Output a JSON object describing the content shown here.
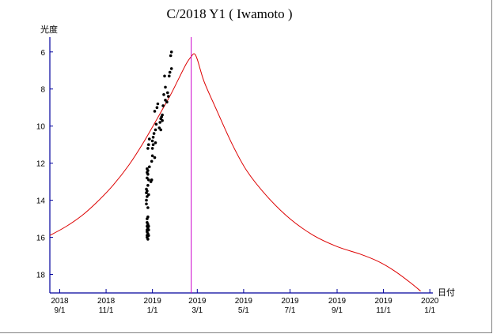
{
  "chart_data": {
    "type": "line",
    "title": "C/2018 Y1 ( Iwamoto )",
    "ylabel": "光度",
    "xlabel": "日付",
    "ylim": [
      19,
      5.2
    ],
    "y_ticks": [
      6,
      8,
      10,
      12,
      14,
      16,
      18
    ],
    "x_range": [
      "2018-08-19",
      "2020-01-05"
    ],
    "x_ticks": [
      {
        "date": "2018-09-01",
        "label": [
          "2018",
          "9/1"
        ]
      },
      {
        "date": "2018-11-01",
        "label": [
          "2018",
          "11/1"
        ]
      },
      {
        "date": "2019-01-01",
        "label": [
          "2019",
          "1/1"
        ]
      },
      {
        "date": "2019-03-01",
        "label": [
          "2019",
          "3/1"
        ]
      },
      {
        "date": "2019-05-01",
        "label": [
          "2019",
          "5/1"
        ]
      },
      {
        "date": "2019-07-01",
        "label": [
          "2019",
          "7/1"
        ]
      },
      {
        "date": "2019-09-01",
        "label": [
          "2019",
          "9/1"
        ]
      },
      {
        "date": "2019-11-01",
        "label": [
          "2019",
          "11/1"
        ]
      },
      {
        "date": "2020-01-01",
        "label": [
          "2020",
          "1/1"
        ]
      }
    ],
    "grid": false,
    "today_marker": {
      "date": "2019-02-21",
      "color": "#cc00cc"
    },
    "predicted_curve": {
      "color": "#dd0000",
      "points": [
        [
          "2018-08-19",
          15.9
        ],
        [
          "2018-09-10",
          15.4
        ],
        [
          "2018-10-01",
          14.8
        ],
        [
          "2018-10-20",
          14.1
        ],
        [
          "2018-11-10",
          13.2
        ],
        [
          "2018-12-01",
          12.1
        ],
        [
          "2018-12-20",
          10.9
        ],
        [
          "2019-01-10",
          9.4
        ],
        [
          "2019-01-25",
          8.3
        ],
        [
          "2019-02-05",
          7.4
        ],
        [
          "2019-02-15",
          6.6
        ],
        [
          "2019-02-21",
          6.25
        ],
        [
          "2019-02-25",
          6.1
        ],
        [
          "2019-03-01",
          6.4
        ],
        [
          "2019-03-10",
          7.6
        ],
        [
          "2019-03-25",
          9.0
        ],
        [
          "2019-04-15",
          10.9
        ],
        [
          "2019-05-05",
          12.4
        ],
        [
          "2019-06-01",
          13.8
        ],
        [
          "2019-07-01",
          15.0
        ],
        [
          "2019-08-01",
          15.9
        ],
        [
          "2019-09-01",
          16.5
        ],
        [
          "2019-10-01",
          16.9
        ],
        [
          "2019-10-25",
          17.3
        ],
        [
          "2019-11-15",
          17.8
        ],
        [
          "2019-12-05",
          18.4
        ],
        [
          "2019-12-20",
          18.9
        ]
      ]
    },
    "observations": {
      "color": "#000000",
      "points": [
        [
          "2018-12-25",
          16.0
        ],
        [
          "2018-12-25",
          15.9
        ],
        [
          "2018-12-25",
          15.7
        ],
        [
          "2018-12-25",
          15.6
        ],
        [
          "2018-12-25",
          15.4
        ],
        [
          "2018-12-25",
          15.2
        ],
        [
          "2018-12-25",
          15.0
        ],
        [
          "2018-12-26",
          16.1
        ],
        [
          "2018-12-26",
          15.8
        ],
        [
          "2018-12-26",
          15.5
        ],
        [
          "2018-12-26",
          15.3
        ],
        [
          "2018-12-26",
          14.9
        ],
        [
          "2018-12-27",
          15.9
        ],
        [
          "2018-12-27",
          15.6
        ],
        [
          "2018-12-27",
          15.4
        ],
        [
          "2018-12-24",
          14.2
        ],
        [
          "2018-12-24",
          14.0
        ],
        [
          "2018-12-24",
          13.6
        ],
        [
          "2018-12-24",
          13.4
        ],
        [
          "2018-12-25",
          13.8
        ],
        [
          "2018-12-25",
          13.5
        ],
        [
          "2018-12-25",
          12.8
        ],
        [
          "2018-12-25",
          12.5
        ],
        [
          "2018-12-25",
          12.3
        ],
        [
          "2018-12-26",
          14.4
        ],
        [
          "2018-12-26",
          13.2
        ],
        [
          "2018-12-26",
          12.6
        ],
        [
          "2018-12-26",
          12.4
        ],
        [
          "2018-12-27",
          13.7
        ],
        [
          "2018-12-27",
          12.9
        ],
        [
          "2018-12-28",
          12.2
        ],
        [
          "2018-12-26",
          11.2
        ],
        [
          "2018-12-27",
          11.0
        ],
        [
          "2018-12-28",
          10.7
        ],
        [
          "2018-12-30",
          13.0
        ],
        [
          "2018-12-31",
          12.9
        ],
        [
          "2018-12-31",
          11.9
        ],
        [
          "2019-01-01",
          11.6
        ],
        [
          "2019-01-01",
          11.2
        ],
        [
          "2019-01-02",
          11.0
        ],
        [
          "2019-01-02",
          10.6
        ],
        [
          "2019-01-01",
          10.8
        ],
        [
          "2019-01-03",
          10.4
        ],
        [
          "2019-01-04",
          11.7
        ],
        [
          "2019-01-05",
          10.9
        ],
        [
          "2019-01-05",
          10.2
        ],
        [
          "2019-01-06",
          9.9
        ],
        [
          "2019-01-04",
          9.2
        ],
        [
          "2019-01-07",
          9.0
        ],
        [
          "2019-01-08",
          8.8
        ],
        [
          "2019-01-10",
          10.1
        ],
        [
          "2019-01-11",
          9.8
        ],
        [
          "2019-01-12",
          10.2
        ],
        [
          "2019-01-12",
          9.6
        ],
        [
          "2019-01-13",
          9.5
        ],
        [
          "2019-01-14",
          9.4
        ],
        [
          "2019-01-14",
          9.7
        ],
        [
          "2019-01-15",
          8.9
        ],
        [
          "2019-01-16",
          8.3
        ],
        [
          "2019-01-17",
          7.3
        ],
        [
          "2019-01-18",
          7.9
        ],
        [
          "2019-01-20",
          8.7
        ],
        [
          "2019-01-21",
          8.2
        ],
        [
          "2019-01-23",
          7.3
        ],
        [
          "2019-01-24",
          7.1
        ],
        [
          "2019-01-26",
          6.9
        ],
        [
          "2019-01-25",
          6.2
        ],
        [
          "2019-01-26",
          6.0
        ],
        [
          "2019-01-22",
          8.4
        ],
        [
          "2019-01-18",
          8.6
        ]
      ]
    }
  }
}
